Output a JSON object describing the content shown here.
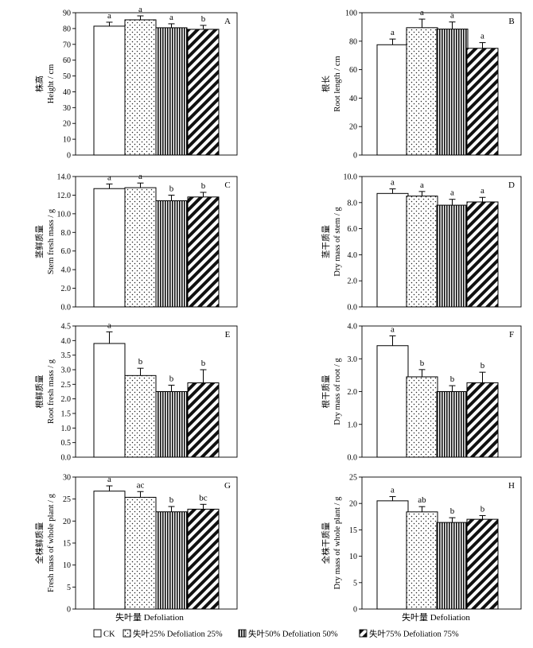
{
  "categories": [
    "CK",
    "失叶25% Defoliation 25%",
    "失叶50% Defoliation 50%",
    "失叶75% Defoliation 75%"
  ],
  "x_axis_label": "失叶量 Defoliation",
  "legend": [
    {
      "label": "CK",
      "pattern": "blank"
    },
    {
      "label": "失叶25%  Defoliation 25%",
      "pattern": "dots"
    },
    {
      "label": "失叶50%  Defoliation 50%",
      "pattern": "vlines"
    },
    {
      "label": "失叶75%  Defoliation 75%",
      "pattern": "diag"
    }
  ],
  "chart_data": [
    {
      "type": "bar",
      "panel": "A",
      "ylabel_cn": "株高",
      "ylabel_en": "Height / cm",
      "ylim": [
        0,
        90
      ],
      "yticks": [
        "0",
        "10",
        "20",
        "30",
        "40",
        "50",
        "60",
        "70",
        "80",
        "90"
      ],
      "values": [
        81.5,
        85.5,
        80.5,
        79.5
      ],
      "errors": [
        2.5,
        2.5,
        2.5,
        2.5
      ],
      "letters": [
        "a",
        "a",
        "a",
        "b"
      ]
    },
    {
      "type": "bar",
      "panel": "B",
      "ylabel_cn": "根长",
      "ylabel_en": "Root length / cm",
      "ylim": [
        0,
        100
      ],
      "yticks": [
        "0",
        "20",
        "40",
        "60",
        "80",
        "100"
      ],
      "values": [
        77.5,
        89.5,
        88.5,
        75
      ],
      "errors": [
        4,
        6,
        5,
        4
      ],
      "letters": [
        "a",
        "a",
        "a",
        "a"
      ]
    },
    {
      "type": "bar",
      "panel": "C",
      "ylabel_cn": "茎鲜质量",
      "ylabel_en": "Stem fresh mass / g",
      "ylim": [
        0,
        14
      ],
      "yticks": [
        "0.0",
        "2.0",
        "4.0",
        "6.0",
        "8.0",
        "10.0",
        "12.0",
        "14.0"
      ],
      "values": [
        12.7,
        12.8,
        11.4,
        11.8
      ],
      "errors": [
        0.5,
        0.5,
        0.6,
        0.5
      ],
      "letters": [
        "a",
        "a",
        "b",
        "b"
      ]
    },
    {
      "type": "bar",
      "panel": "D",
      "ylabel_cn": "茎干质量",
      "ylabel_en": "Dry mass of stem / g",
      "ylim": [
        0,
        10
      ],
      "yticks": [
        "0.0",
        "2.0",
        "4.0",
        "6.0",
        "8.0",
        "10.0"
      ],
      "values": [
        8.7,
        8.5,
        7.8,
        8.05
      ],
      "errors": [
        0.35,
        0.35,
        0.45,
        0.35
      ],
      "letters": [
        "a",
        "a",
        "a",
        "a"
      ]
    },
    {
      "type": "bar",
      "panel": "E",
      "ylabel_cn": "根鲜质量",
      "ylabel_en": "Root fresh mass / g",
      "ylim": [
        0,
        4.5
      ],
      "yticks": [
        "0.0",
        "0.5",
        "1.0",
        "1.5",
        "2.0",
        "2.5",
        "3.0",
        "3.5",
        "4.0",
        "4.5"
      ],
      "values": [
        3.9,
        2.8,
        2.25,
        2.55
      ],
      "errors": [
        0.4,
        0.25,
        0.22,
        0.45
      ],
      "letters": [
        "a",
        "b",
        "b",
        "b"
      ]
    },
    {
      "type": "bar",
      "panel": "F",
      "ylabel_cn": "根干质量",
      "ylabel_en": "Dry mass of root / g",
      "ylim": [
        0,
        4
      ],
      "yticks": [
        "0.0",
        "1.0",
        "2.0",
        "3.0",
        "4.0"
      ],
      "values": [
        3.4,
        2.45,
        2.0,
        2.27
      ],
      "errors": [
        0.3,
        0.22,
        0.18,
        0.32
      ],
      "letters": [
        "a",
        "b",
        "b",
        "b"
      ]
    },
    {
      "type": "bar",
      "panel": "G",
      "ylabel_cn": "全株鲜质量",
      "ylabel_en": "Fresh mass of whole plant / g",
      "ylim": [
        0,
        30
      ],
      "yticks": [
        "0",
        "5",
        "10",
        "15",
        "20",
        "25",
        "30"
      ],
      "values": [
        26.8,
        25.4,
        22.1,
        22.7
      ],
      "errors": [
        1.2,
        1.3,
        1.2,
        1.1
      ],
      "letters": [
        "a",
        "ac",
        "b",
        "bc"
      ]
    },
    {
      "type": "bar",
      "panel": "H",
      "ylabel_cn": "全株干质量",
      "ylabel_en": "Dry mass of whole plant / g",
      "ylim": [
        0,
        25
      ],
      "yticks": [
        "0",
        "5",
        "10",
        "15",
        "20",
        "25"
      ],
      "values": [
        20.5,
        18.4,
        16.4,
        17.0
      ],
      "errors": [
        0.8,
        1.0,
        0.9,
        0.7
      ],
      "letters": [
        "a",
        "ab",
        "b",
        "b"
      ]
    }
  ]
}
